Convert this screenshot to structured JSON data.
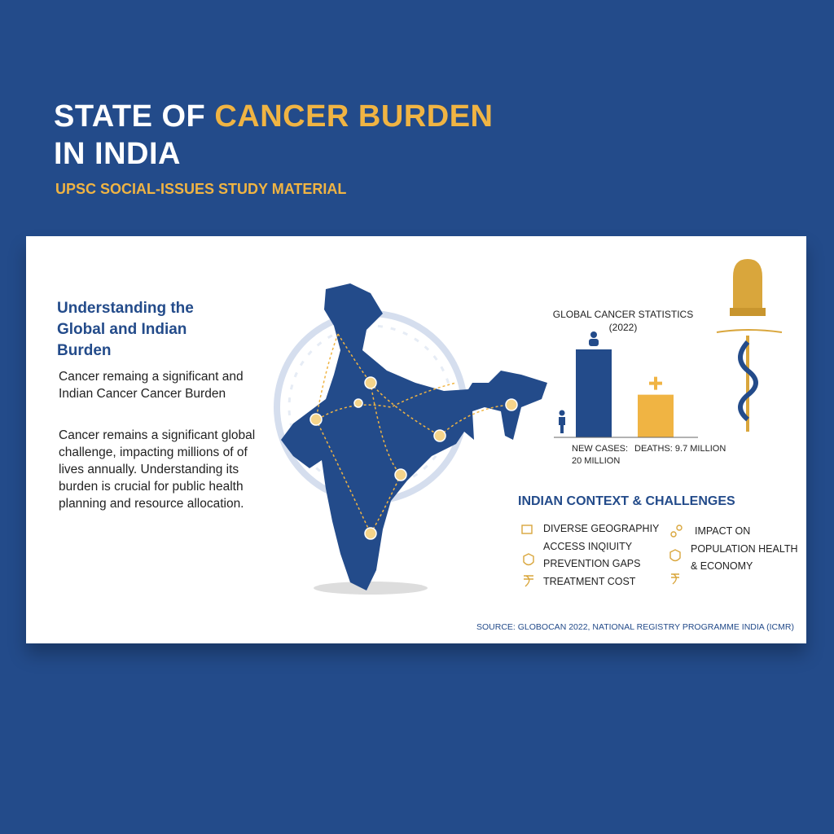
{
  "header": {
    "title_white_1": "STATE OF",
    "title_gold": "CANCER BURDEN",
    "title_white_2": "IN INDIA",
    "subtitle": "UPSC SOCIAL-ISSUES STUDY MATERIAL"
  },
  "intro": {
    "heading": "Understanding the Global and Indian Burden",
    "paragraphs": [
      "Cancer remaing a significant and Indian Cancer Cancer Burden",
      "Cancer remains a significant global challenge, impacting millions of of lives annually. Understanding its burden is crucial for public health planning and resource allocation."
    ]
  },
  "chart_data": {
    "type": "bar",
    "title": "GLOBAL CANCER STATISTICS",
    "subtitle": "(2022)",
    "categories": [
      "NEW CASES:",
      "DEATHS:"
    ],
    "values": [
      20,
      9.7
    ],
    "value_labels": [
      "20 MILLION",
      "9.7 MILLION"
    ],
    "colors": [
      "#234b8a",
      "#f0b443"
    ]
  },
  "challenges": {
    "title": "INDIAN CONTEXT & CHALLENGES",
    "left": [
      "DIVERSE GEOGRAPHIY",
      "ACCESS INQIUITY",
      "PREVENTION GAPS",
      "TREATMENT COST"
    ],
    "right": [
      "IMPACT ON",
      "POPULATION HEALTH",
      "& ECONOMY"
    ]
  },
  "source": "SOURCE: GLOBOCAN 2022, NATIONAL REGISTRY PROGRAMME INDIA (ICMR)"
}
